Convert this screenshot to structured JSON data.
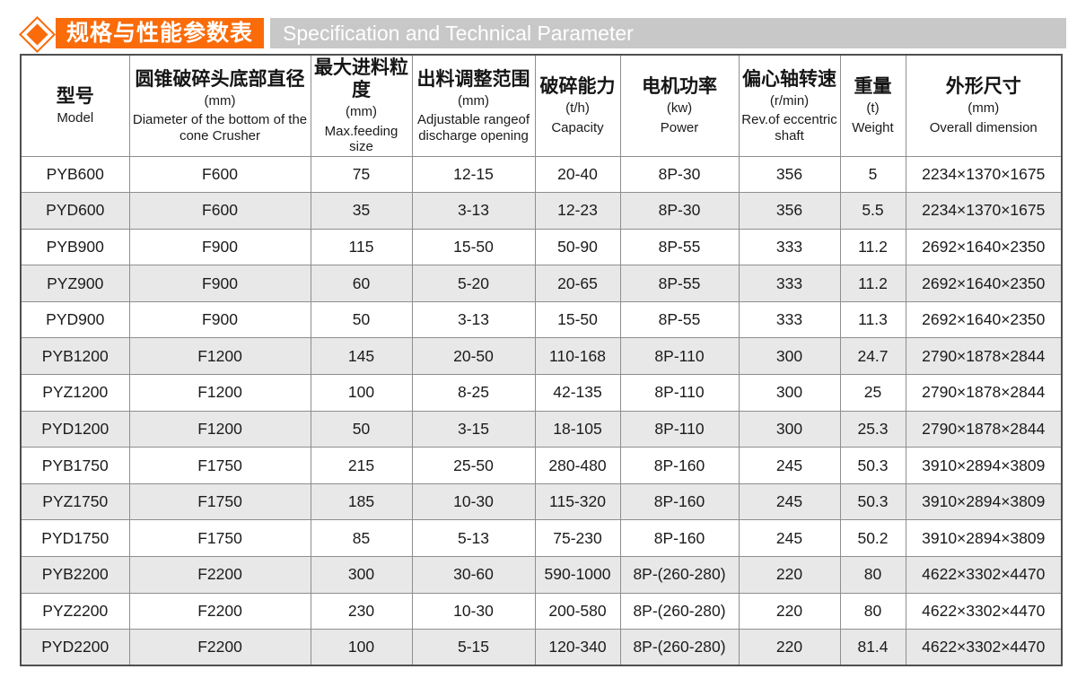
{
  "header": {
    "title_zh": "规格与性能参数表",
    "title_en": "Specification and Technical Parameter"
  },
  "colors": {
    "accent_orange": "#fa6b0a",
    "title_bar_gray": "#c8c8c8",
    "row_stripe_gray": "#e8e8e8",
    "table_border": "#8e8e8e"
  },
  "icons": {
    "bullet": "diamond-icon"
  },
  "table": {
    "columns": [
      {
        "zh": "型号",
        "unit": "",
        "en": "Model"
      },
      {
        "zh": "圆锥破碎头底部直径",
        "unit": "(mm)",
        "en": "Diameter of the bottom of the cone Crusher"
      },
      {
        "zh": "最大进料粒度",
        "unit": "(mm)",
        "en": "Max.feeding size"
      },
      {
        "zh": "出料调整范围",
        "unit": "(mm)",
        "en": "Adjustable rangeof discharge opening"
      },
      {
        "zh": "破碎能力",
        "unit": "(t/h)",
        "en": "Capacity"
      },
      {
        "zh": "电机功率",
        "unit": "(kw)",
        "en": "Power"
      },
      {
        "zh": "偏心轴转速",
        "unit": "(r/min)",
        "en": "Rev.of eccentric shaft"
      },
      {
        "zh": "重量",
        "unit": "(t)",
        "en": "Weight"
      },
      {
        "zh": "外形尺寸",
        "unit": "(mm)",
        "en": "Overall dimension"
      }
    ],
    "rows": [
      [
        "PYB600",
        "F600",
        "75",
        "12-15",
        "20-40",
        "8P-30",
        "356",
        "5",
        "2234×1370×1675"
      ],
      [
        "PYD600",
        "F600",
        "35",
        "3-13",
        "12-23",
        "8P-30",
        "356",
        "5.5",
        "2234×1370×1675"
      ],
      [
        "PYB900",
        "F900",
        "115",
        "15-50",
        "50-90",
        "8P-55",
        "333",
        "11.2",
        "2692×1640×2350"
      ],
      [
        "PYZ900",
        "F900",
        "60",
        "5-20",
        "20-65",
        "8P-55",
        "333",
        "11.2",
        "2692×1640×2350"
      ],
      [
        "PYD900",
        "F900",
        "50",
        "3-13",
        "15-50",
        "8P-55",
        "333",
        "11.3",
        "2692×1640×2350"
      ],
      [
        "PYB1200",
        "F1200",
        "145",
        "20-50",
        "110-168",
        "8P-110",
        "300",
        "24.7",
        "2790×1878×2844"
      ],
      [
        "PYZ1200",
        "F1200",
        "100",
        "8-25",
        "42-135",
        "8P-110",
        "300",
        "25",
        "2790×1878×2844"
      ],
      [
        "PYD1200",
        "F1200",
        "50",
        "3-15",
        "18-105",
        "8P-110",
        "300",
        "25.3",
        "2790×1878×2844"
      ],
      [
        "PYB1750",
        "F1750",
        "215",
        "25-50",
        "280-480",
        "8P-160",
        "245",
        "50.3",
        "3910×2894×3809"
      ],
      [
        "PYZ1750",
        "F1750",
        "185",
        "10-30",
        "115-320",
        "8P-160",
        "245",
        "50.3",
        "3910×2894×3809"
      ],
      [
        "PYD1750",
        "F1750",
        "85",
        "5-13",
        "75-230",
        "8P-160",
        "245",
        "50.2",
        "3910×2894×3809"
      ],
      [
        "PYB2200",
        "F2200",
        "300",
        "30-60",
        "590-1000",
        "8P-(260-280)",
        "220",
        "80",
        "4622×3302×4470"
      ],
      [
        "PYZ2200",
        "F2200",
        "230",
        "10-30",
        "200-580",
        "8P-(260-280)",
        "220",
        "80",
        "4622×3302×4470"
      ],
      [
        "PYD2200",
        "F2200",
        "100",
        "5-15",
        "120-340",
        "8P-(260-280)",
        "220",
        "81.4",
        "4622×3302×4470"
      ]
    ]
  }
}
